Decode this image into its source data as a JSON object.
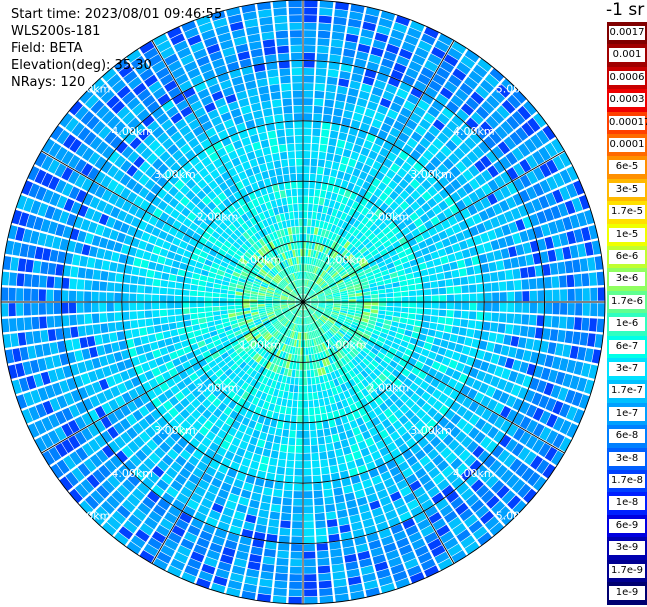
{
  "info": {
    "start_time": "Start time: 2023/08/01 09:46:55",
    "instrument": "WLS200s-181",
    "field": "Field: BETA",
    "elevation": "Elevation(deg): 35.30",
    "nrays": "NRays: 120"
  },
  "colorbar": {
    "unit_label": "-1 sr",
    "levels": [
      {
        "label": "0.0017",
        "color": "#800000"
      },
      {
        "label": "0.001",
        "color": "#a00000"
      },
      {
        "label": "0.0006",
        "color": "#c80000"
      },
      {
        "label": "0.0003",
        "color": "#ee0000"
      },
      {
        "label": "0.00017",
        "color": "#ff4000"
      },
      {
        "label": "0.0001",
        "color": "#ff6a00"
      },
      {
        "label": "6e-5",
        "color": "#ff9000"
      },
      {
        "label": "3e-5",
        "color": "#ffb800"
      },
      {
        "label": "1.7e-5",
        "color": "#ffe000"
      },
      {
        "label": "1e-5",
        "color": "#f0ff00"
      },
      {
        "label": "6e-6",
        "color": "#c0ff30"
      },
      {
        "label": "3e-6",
        "color": "#90ff60"
      },
      {
        "label": "1.7e-6",
        "color": "#60ff90"
      },
      {
        "label": "1e-6",
        "color": "#30ffc0"
      },
      {
        "label": "6e-7",
        "color": "#00ffe8"
      },
      {
        "label": "3e-7",
        "color": "#00e0ff"
      },
      {
        "label": "1.7e-7",
        "color": "#00c0ff"
      },
      {
        "label": "1e-7",
        "color": "#00a0ff"
      },
      {
        "label": "6e-8",
        "color": "#0080ff"
      },
      {
        "label": "3e-8",
        "color": "#0060ff"
      },
      {
        "label": "1.7e-8",
        "color": "#0040ff"
      },
      {
        "label": "1e-8",
        "color": "#0020ff"
      },
      {
        "label": "6e-9",
        "color": "#0000e0"
      },
      {
        "label": "3e-9",
        "color": "#0000b0"
      },
      {
        "label": "1.7e-9",
        "color": "#000090"
      },
      {
        "label": "1e-9",
        "color": "#000070"
      }
    ]
  },
  "chart_data": {
    "type": "heatmap",
    "projection": "polar (PPI)",
    "field": "BETA",
    "nrays": 120,
    "range_rings_km": [
      1,
      2,
      3,
      4,
      5
    ],
    "ring_labels": [
      "1.00km",
      "2.00km",
      "3.00km",
      "4.00km",
      "5.00km"
    ],
    "max_range_km": 5.0,
    "legend_placement": "right",
    "approx_values_by_range": [
      {
        "range_km": 0.5,
        "beta": "3e-6"
      },
      {
        "range_km": 1.0,
        "beta": "1e-6"
      },
      {
        "range_km": 2.0,
        "beta": "6e-7"
      },
      {
        "range_km": 3.0,
        "beta": "3e-7"
      },
      {
        "range_km": 4.0,
        "beta": "1e-7"
      },
      {
        "range_km": 5.0,
        "beta": "6e-8"
      }
    ]
  }
}
